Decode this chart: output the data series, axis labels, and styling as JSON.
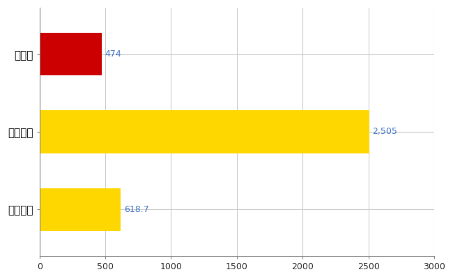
{
  "categories": [
    "石川県",
    "全国最大",
    "全国平均"
  ],
  "values": [
    474,
    2505,
    618.7
  ],
  "bar_colors": [
    "#cc0000",
    "#ffd700",
    "#ffd700"
  ],
  "value_labels": [
    "474",
    "2,505",
    "618.7"
  ],
  "xlim": [
    0,
    3000
  ],
  "xticks": [
    0,
    500,
    1000,
    1500,
    2000,
    2500,
    3000
  ],
  "grid_color": "#cccccc",
  "background_color": "#ffffff",
  "label_color": "#4477cc",
  "bar_height": 0.55,
  "figsize": [
    6.5,
    4.0
  ],
  "dpi": 100
}
